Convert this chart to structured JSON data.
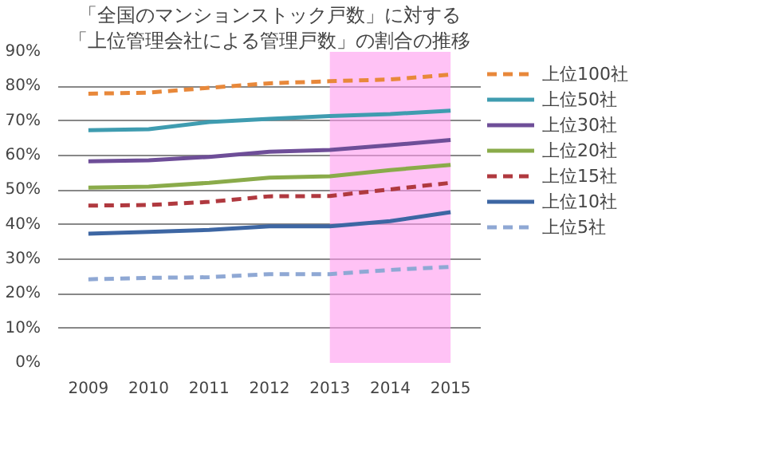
{
  "chart_data": {
    "type": "line",
    "title": "「全国のマンションストック戸数」に対する",
    "subtitle": "「上位管理会社による管理戸数」の割合の推移",
    "x": [
      2009,
      2010,
      2011,
      2012,
      2013,
      2014,
      2015
    ],
    "xlim": [
      2008.5,
      2015.5
    ],
    "xticks": [
      2009,
      2010,
      2011,
      2012,
      2013,
      2014,
      2015
    ],
    "ylim": [
      0,
      0.9
    ],
    "yticks": [
      {
        "value": 0,
        "label": "0%"
      },
      {
        "value": 0.1,
        "label": "10%"
      },
      {
        "value": 0.2,
        "label": "20%"
      },
      {
        "value": 0.3,
        "label": "30%"
      },
      {
        "value": 0.4,
        "label": "40%"
      },
      {
        "value": 0.5,
        "label": "50%"
      },
      {
        "value": 0.6,
        "label": "60%"
      },
      {
        "value": 0.7,
        "label": "70%"
      },
      {
        "value": 0.8,
        "label": "80%"
      },
      {
        "value": 0.9,
        "label": "90%"
      }
    ],
    "grid": "y",
    "legend": "right",
    "marker": "none",
    "bands": [
      {
        "axis": "x",
        "from": 2013,
        "to": 2015,
        "color": "#ff99ee"
      }
    ],
    "series": [
      {
        "name": "上位100社",
        "color": "#e8883a",
        "line_style": "dashed",
        "values": [
          0.779,
          0.782,
          0.796,
          0.809,
          0.815,
          0.82,
          0.834
        ]
      },
      {
        "name": "上位50社",
        "color": "#3f9cb0",
        "line_style": "solid",
        "values": [
          0.673,
          0.676,
          0.697,
          0.706,
          0.714,
          0.72,
          0.73
        ]
      },
      {
        "name": "上位30社",
        "color": "#6e4e98",
        "line_style": "solid",
        "values": [
          0.583,
          0.586,
          0.596,
          0.611,
          0.616,
          0.63,
          0.645
        ]
      },
      {
        "name": "上位20社",
        "color": "#8aab4a",
        "line_style": "solid",
        "values": [
          0.507,
          0.51,
          0.521,
          0.536,
          0.54,
          0.558,
          0.573
        ]
      },
      {
        "name": "上位15社",
        "color": "#b0393f",
        "line_style": "dashed",
        "values": [
          0.455,
          0.457,
          0.466,
          0.482,
          0.483,
          0.502,
          0.521
        ]
      },
      {
        "name": "上位10社",
        "color": "#3d66a3",
        "line_style": "solid",
        "values": [
          0.374,
          0.379,
          0.385,
          0.395,
          0.395,
          0.41,
          0.436
        ]
      },
      {
        "name": "上位5社",
        "color": "#8fa8d4",
        "line_style": "dashed",
        "values": [
          0.242,
          0.246,
          0.248,
          0.257,
          0.257,
          0.269,
          0.278
        ]
      }
    ]
  }
}
